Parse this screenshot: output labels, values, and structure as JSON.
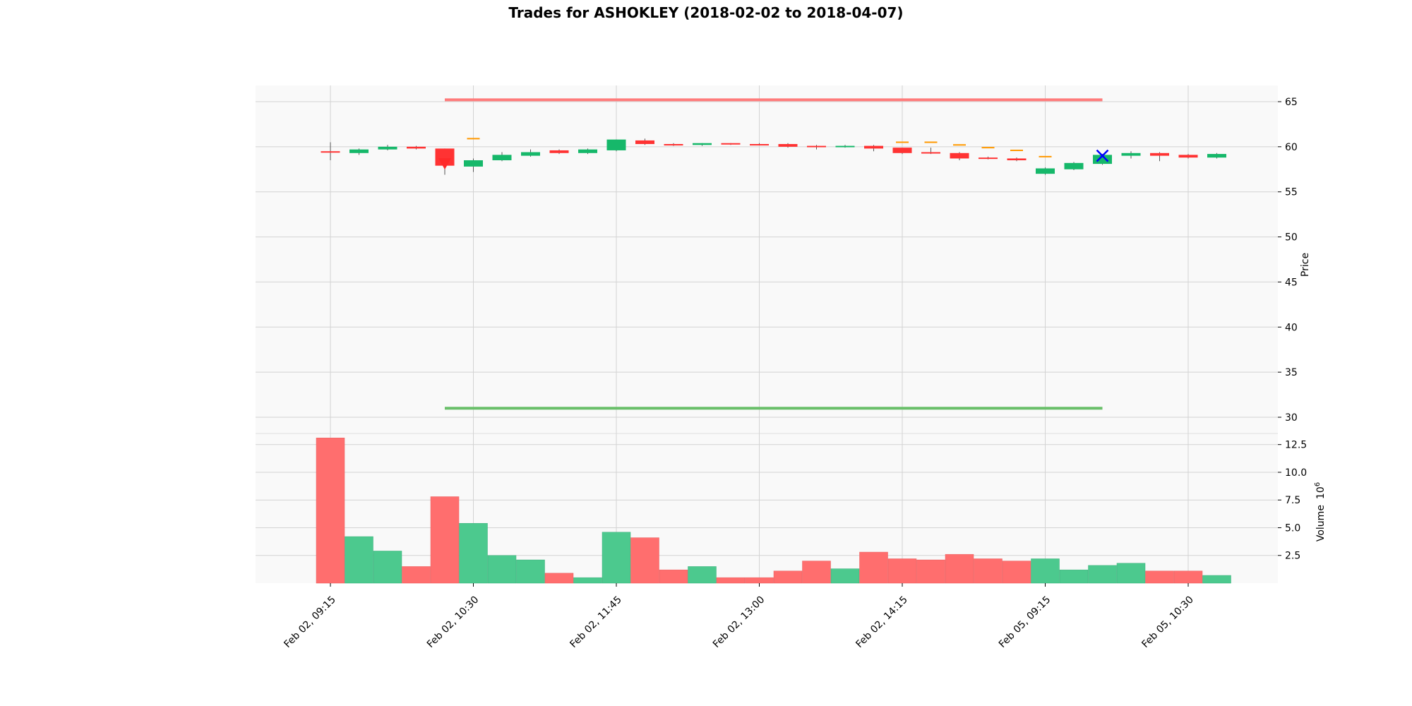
{
  "chart_data": {
    "type": "candlestick",
    "title": "Trades for ASHOKLEY (2018-02-02 to 2018-04-07)",
    "price_panel": {
      "ylabel": "Price",
      "ylim": [
        28.2,
        66.8
      ],
      "yticks": [
        30,
        35,
        40,
        45,
        50,
        55,
        60,
        65
      ],
      "grid": true,
      "candles": [
        {
          "o": 59.4,
          "h": 60.5,
          "l": 58.5,
          "c": 59.5,
          "color": "red"
        },
        {
          "o": 59.3,
          "h": 59.8,
          "l": 59.1,
          "c": 59.7,
          "color": "green"
        },
        {
          "o": 59.7,
          "h": 60.2,
          "l": 59.6,
          "c": 60.0,
          "color": "green"
        },
        {
          "o": 60.0,
          "h": 60.1,
          "l": 59.7,
          "c": 59.8,
          "color": "red"
        },
        {
          "o": 59.8,
          "h": 59.8,
          "l": 56.9,
          "c": 57.9,
          "color": "red"
        },
        {
          "o": 57.8,
          "h": 58.7,
          "l": 57.2,
          "c": 58.5,
          "color": "green"
        },
        {
          "o": 58.5,
          "h": 59.4,
          "l": 58.4,
          "c": 59.1,
          "color": "green"
        },
        {
          "o": 59.0,
          "h": 59.7,
          "l": 58.9,
          "c": 59.4,
          "color": "green"
        },
        {
          "o": 59.6,
          "h": 59.7,
          "l": 59.2,
          "c": 59.3,
          "color": "red"
        },
        {
          "o": 59.3,
          "h": 59.8,
          "l": 59.2,
          "c": 59.7,
          "color": "green"
        },
        {
          "o": 59.6,
          "h": 60.8,
          "l": 59.5,
          "c": 60.8,
          "color": "green"
        },
        {
          "o": 60.7,
          "h": 60.9,
          "l": 60.2,
          "c": 60.3,
          "color": "red"
        },
        {
          "o": 60.3,
          "h": 60.4,
          "l": 60.1,
          "c": 60.2,
          "color": "red"
        },
        {
          "o": 60.2,
          "h": 60.4,
          "l": 60.1,
          "c": 60.4,
          "color": "green"
        },
        {
          "o": 60.4,
          "h": 60.4,
          "l": 60.2,
          "c": 60.3,
          "color": "red"
        },
        {
          "o": 60.3,
          "h": 60.4,
          "l": 60.2,
          "c": 60.3,
          "color": "red"
        },
        {
          "o": 60.3,
          "h": 60.4,
          "l": 59.9,
          "c": 60.0,
          "color": "red"
        },
        {
          "o": 60.1,
          "h": 60.2,
          "l": 59.7,
          "c": 60.0,
          "color": "red"
        },
        {
          "o": 60.0,
          "h": 60.2,
          "l": 59.9,
          "c": 60.1,
          "color": "green"
        },
        {
          "o": 60.1,
          "h": 60.2,
          "l": 59.5,
          "c": 59.8,
          "color": "red"
        },
        {
          "o": 59.9,
          "h": 59.9,
          "l": 59.2,
          "c": 59.3,
          "color": "red"
        },
        {
          "o": 59.4,
          "h": 59.9,
          "l": 59.2,
          "c": 59.3,
          "color": "red"
        },
        {
          "o": 59.3,
          "h": 59.4,
          "l": 58.5,
          "c": 58.7,
          "color": "red"
        },
        {
          "o": 58.8,
          "h": 58.9,
          "l": 58.6,
          "c": 58.7,
          "color": "red"
        },
        {
          "o": 58.7,
          "h": 58.8,
          "l": 58.4,
          "c": 58.5,
          "color": "red"
        },
        {
          "o": 57.0,
          "h": 57.7,
          "l": 56.9,
          "c": 57.6,
          "color": "green"
        },
        {
          "o": 57.5,
          "h": 58.3,
          "l": 57.4,
          "c": 58.2,
          "color": "green"
        },
        {
          "o": 58.1,
          "h": 59.2,
          "l": 58.0,
          "c": 59.1,
          "color": "green"
        },
        {
          "o": 59.0,
          "h": 59.5,
          "l": 58.7,
          "c": 59.3,
          "color": "green"
        },
        {
          "o": 59.3,
          "h": 59.4,
          "l": 58.4,
          "c": 59.0,
          "color": "red"
        },
        {
          "o": 59.1,
          "h": 59.2,
          "l": 58.7,
          "c": 58.8,
          "color": "red"
        },
        {
          "o": 58.8,
          "h": 59.3,
          "l": 58.7,
          "c": 59.2,
          "color": "green"
        }
      ],
      "orange_ticks": [
        {
          "index": 5,
          "value": 60.9
        },
        {
          "index": 20,
          "value": 60.5
        },
        {
          "index": 21,
          "value": 60.5
        },
        {
          "index": 22,
          "value": 60.2
        },
        {
          "index": 23,
          "value": 59.9
        },
        {
          "index": 24,
          "value": 59.6
        },
        {
          "index": 25,
          "value": 58.9
        }
      ],
      "hlines": [
        {
          "value": 65.2,
          "start": 4,
          "end": 27,
          "color": "#ff7b7b"
        },
        {
          "value": 31.0,
          "start": 4,
          "end": 27,
          "color": "#6abf6a"
        }
      ],
      "markers": [
        {
          "type": "triangle-down",
          "index": 4,
          "value": 58.1,
          "color": "#ff2a2a"
        },
        {
          "type": "x",
          "index": 27,
          "value": 59.0,
          "color": "#0000ff"
        }
      ]
    },
    "volume_panel": {
      "ylabel": "Volume",
      "exponent": "10",
      "exponent_power": "6",
      "ylim": [
        0,
        13.5
      ],
      "yticks": [
        "2.5",
        "5.0",
        "7.5",
        "10.0",
        "12.5"
      ],
      "values": [
        13.1,
        4.2,
        2.9,
        1.5,
        7.8,
        5.4,
        2.5,
        2.1,
        0.9,
        0.5,
        4.6,
        4.1,
        1.2,
        1.5,
        0.5,
        0.5,
        1.1,
        2.0,
        1.3,
        2.8,
        2.2,
        2.1,
        2.6,
        2.2,
        2.0,
        2.2,
        1.2,
        1.6,
        1.8,
        1.1,
        1.1,
        0.7
      ]
    },
    "xticks": [
      {
        "index": 0,
        "label": "Feb 02, 09:15"
      },
      {
        "index": 5,
        "label": "Feb 02, 10:30"
      },
      {
        "index": 10,
        "label": "Feb 02, 11:45"
      },
      {
        "index": 15,
        "label": "Feb 02, 13:00"
      },
      {
        "index": 20,
        "label": "Feb 02, 14:15"
      },
      {
        "index": 25,
        "label": "Feb 05, 09:15"
      },
      {
        "index": 30,
        "label": "Feb 05, 10:30"
      }
    ],
    "colors": {
      "up": "#16b86a",
      "down": "#ff3333",
      "vol_up": "#4cc98e",
      "vol_down": "#ff6e6e",
      "orange": "#ff9900",
      "panel_bg": "#f9f9f9",
      "grid": "#d3d3d3"
    }
  }
}
